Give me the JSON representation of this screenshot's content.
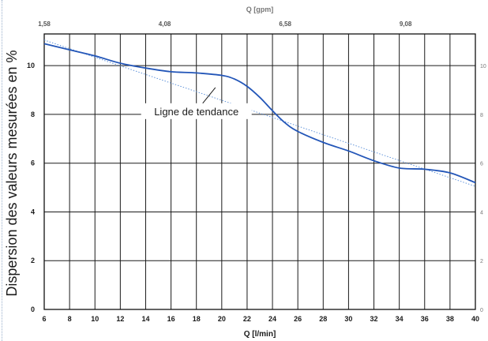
{
  "chart_data": {
    "type": "line",
    "xlabel": "Q [l/min]",
    "ylabel": "Dispersion des valeurs mesurées en %",
    "x2label": "Q [gpm]",
    "xlim": [
      6,
      40
    ],
    "ylim": [
      0,
      11.3
    ],
    "x_ticks": [
      "6",
      "8",
      "10",
      "12",
      "14",
      "16",
      "18",
      "20",
      "22",
      "24",
      "26",
      "28",
      "30",
      "32",
      "34",
      "36",
      "38",
      "40"
    ],
    "y_ticks": [
      "0",
      "2",
      "4",
      "6",
      "8",
      "10"
    ],
    "x2_ticks": [
      {
        "label": "1,58",
        "at": 6
      },
      {
        "label": "4,08",
        "at": 15.5
      },
      {
        "label": "6,58",
        "at": 25
      },
      {
        "label": "9,08",
        "at": 34.5
      }
    ],
    "y2_ticks": [
      "0",
      "2",
      "4",
      "6",
      "8",
      "10"
    ],
    "grid": true,
    "series": [
      {
        "color": "#2356b8",
        "x": [
          6,
          8,
          10,
          12,
          14,
          16,
          18,
          20,
          21,
          22,
          23,
          24,
          25,
          26,
          28,
          30,
          32,
          34,
          36,
          38,
          40
        ],
        "y": [
          10.9,
          10.65,
          10.4,
          10.1,
          9.9,
          9.75,
          9.7,
          9.6,
          9.45,
          9.15,
          8.7,
          8.15,
          7.65,
          7.3,
          6.85,
          6.5,
          6.1,
          5.8,
          5.75,
          5.6,
          5.2
        ]
      }
    ],
    "trendline": {
      "color": "#5a8fd8",
      "x": [
        6,
        40
      ],
      "y": [
        11.05,
        5.05
      ]
    },
    "annotations": [
      {
        "text": "Ligne de tendance",
        "x": 18,
        "y": 8.1,
        "pointer": {
          "x": 19.5,
          "y": 9.1
        }
      }
    ]
  }
}
